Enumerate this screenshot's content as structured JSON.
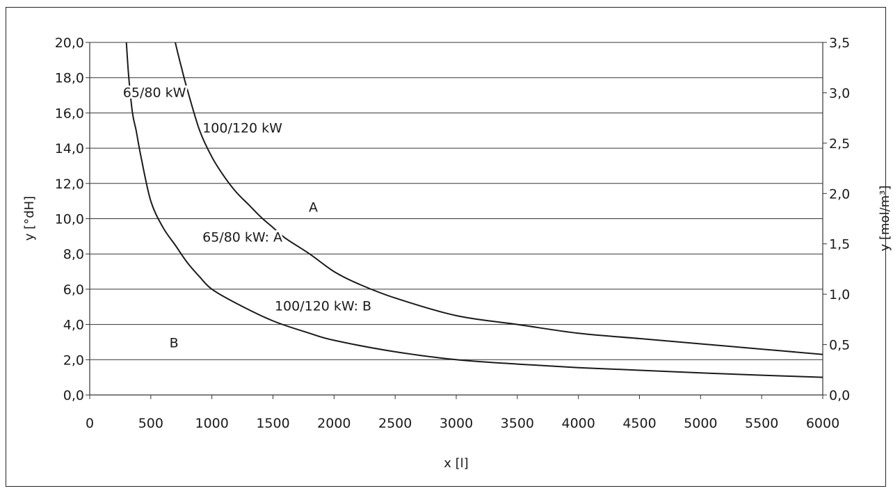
{
  "chart_data": {
    "type": "line",
    "xlabel": "x [l]",
    "ylabel": "y [°dH]",
    "y2label": "y [mol/m³]",
    "xlim": [
      0,
      6000
    ],
    "ylim": [
      0,
      20
    ],
    "y2lim": [
      0,
      3.5
    ],
    "grid": "horizontal",
    "x_ticks": [
      "0",
      "500",
      "1000",
      "1500",
      "2000",
      "2500",
      "3000",
      "3500",
      "4000",
      "4500",
      "5000",
      "5500",
      "6000"
    ],
    "y_ticks": [
      "0,0",
      "2,0",
      "4,0",
      "6,0",
      "8,0",
      "10,0",
      "12,0",
      "14,0",
      "16,0",
      "18,0",
      "20,0"
    ],
    "y2_ticks": [
      "0,0",
      "0,5",
      "1,0",
      "1,5",
      "2,0",
      "2,5",
      "3,0",
      "3,5"
    ],
    "series": [
      {
        "label": "65/80 kW",
        "x": [
          300,
          320,
          350,
          380,
          420,
          500,
          600,
          700,
          800,
          900,
          1000,
          1200,
          1500,
          1800,
          2000,
          2500,
          3000,
          3500,
          4000,
          4500,
          5000,
          5500,
          6000
        ],
        "y": [
          20.0,
          18.0,
          16.0,
          15.0,
          13.5,
          11.0,
          9.5,
          8.5,
          7.5,
          6.7,
          6.0,
          5.2,
          4.2,
          3.5,
          3.1,
          2.45,
          2.0,
          1.75,
          1.55,
          1.4,
          1.25,
          1.12,
          1.0
        ]
      },
      {
        "label": "100/120 kW",
        "x": [
          700,
          750,
          800,
          900,
          1000,
          1100,
          1200,
          1300,
          1400,
          1500,
          1600,
          1800,
          2000,
          2200,
          2500,
          3000,
          3500,
          4000,
          4500,
          5000,
          5500,
          6000
        ],
        "y": [
          20.0,
          18.6,
          17.3,
          15.0,
          13.5,
          12.4,
          11.5,
          10.8,
          10.1,
          9.5,
          8.9,
          8.0,
          7.0,
          6.3,
          5.5,
          4.5,
          4.0,
          3.5,
          3.2,
          2.9,
          2.6,
          2.3
        ]
      }
    ],
    "annotations": [
      {
        "text": "65/80 kW",
        "x": 530,
        "y": 16.9
      },
      {
        "text": "100/120 kW",
        "x": 1250,
        "y": 14.9
      },
      {
        "text": "A",
        "x": 1830,
        "y": 10.4
      },
      {
        "text": "65/80 kW: A",
        "x": 1250,
        "y": 8.7
      },
      {
        "text": "100/120 kW: B",
        "x": 1910,
        "y": 4.8
      },
      {
        "text": "B",
        "x": 690,
        "y": 2.7
      }
    ]
  }
}
